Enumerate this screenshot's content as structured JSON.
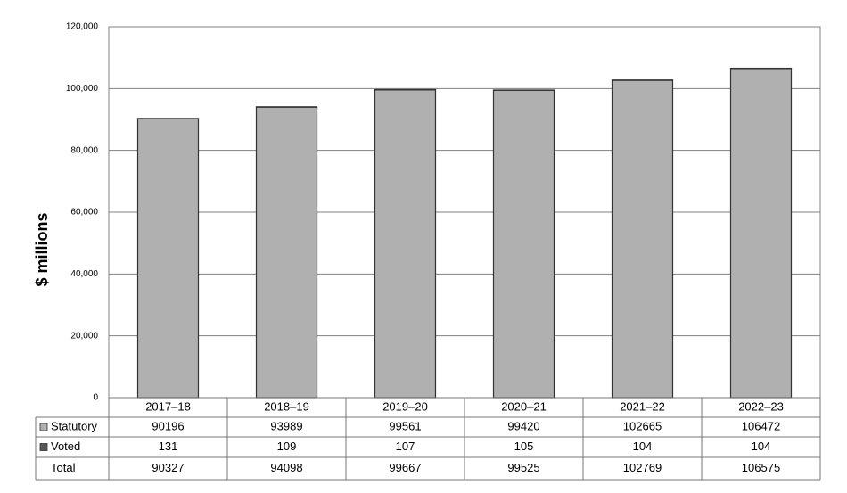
{
  "chart_data": {
    "type": "stacked-bar",
    "ylabel": "$ millions",
    "categories": [
      "2017–18",
      "2018–19",
      "2019–20",
      "2020–21",
      "2021–22",
      "2022–23"
    ],
    "series": [
      {
        "name": "Statutory",
        "color": "#b0b0b0",
        "values": [
          90196,
          93989,
          99561,
          99420,
          102665,
          106472
        ]
      },
      {
        "name": "Voted",
        "color": "#595959",
        "values": [
          131,
          109,
          107,
          105,
          104,
          104
        ]
      }
    ],
    "total": {
      "name": "Total",
      "values": [
        90327,
        94098,
        99667,
        99525,
        102769,
        106575
      ]
    },
    "ylim": [
      0,
      120000
    ],
    "yticks": [
      0,
      {
        "value": 20000,
        "label": "20,000"
      },
      {
        "value": 40000,
        "label": "40,000"
      },
      {
        "value": 60000,
        "label": "60,000"
      },
      {
        "value": 80000,
        "label": "80,000"
      },
      {
        "value": 100000,
        "label": "100,000"
      },
      {
        "value": 120000,
        "label": "120,000"
      }
    ],
    "grid": true
  }
}
